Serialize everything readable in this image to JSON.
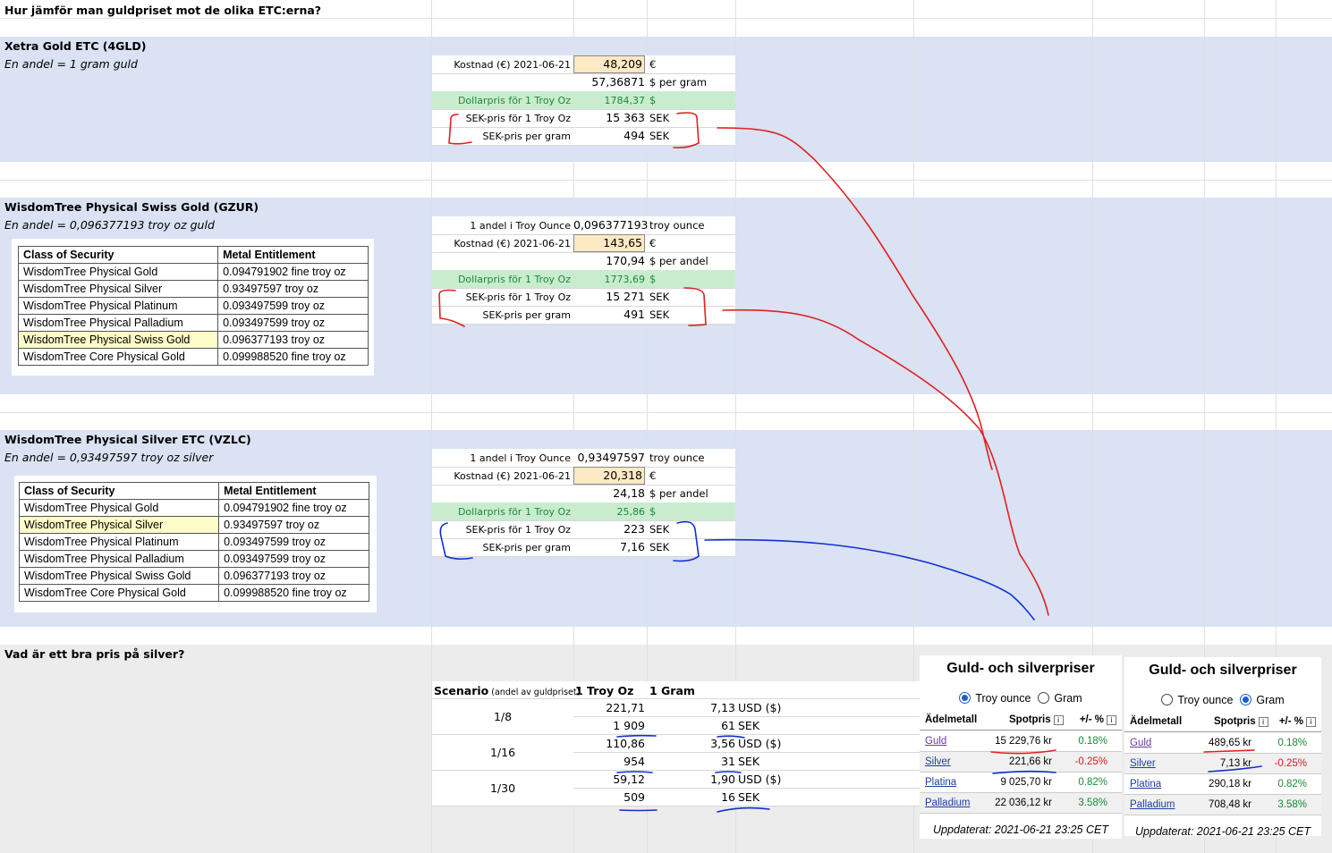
{
  "heading": "Hur jämför man guldpriset mot de olika ETC:erna?",
  "section1": {
    "title": "Xetra Gold ETC (4GLD)",
    "subtitle": "En andel = 1 gram guld",
    "rows": [
      {
        "label": "Kostnad (€) 2021-06-21",
        "value": "48,209",
        "unit": "€",
        "highlight": true
      },
      {
        "label": "",
        "value": "57,36871",
        "unit": "$ per gram"
      },
      {
        "label": "Dollarpris för 1 Troy Oz",
        "value": "1784,37",
        "unit": "$",
        "green": true
      },
      {
        "label": "SEK-pris för 1 Troy Oz",
        "value": "15 363",
        "unit": "SEK"
      },
      {
        "label": "SEK-pris per gram",
        "value": "494",
        "unit": "SEK"
      }
    ]
  },
  "section2": {
    "title": "WisdomTree Physical Swiss Gold (GZUR)",
    "subtitle": "En andel = 0,096377193 troy oz guld",
    "rows": [
      {
        "label": "1 andel i Troy Ounce",
        "value": "0,096377193",
        "unit": "troy ounce"
      },
      {
        "label": "Kostnad (€) 2021-06-21",
        "value": "143,65",
        "unit": "€",
        "highlight": true
      },
      {
        "label": "",
        "value": "170,94",
        "unit": "$ per andel"
      },
      {
        "label": "Dollarpris för 1 Troy Oz",
        "value": "1773,69",
        "unit": "$",
        "green": true
      },
      {
        "label": "SEK-pris för 1 Troy Oz",
        "value": "15 271",
        "unit": "SEK"
      },
      {
        "label": "SEK-pris per gram",
        "value": "491",
        "unit": "SEK"
      }
    ]
  },
  "section3": {
    "title": "WisdomTree Physical Silver ETC (VZLC)",
    "subtitle": "En andel = 0,93497597 troy oz silver",
    "rows": [
      {
        "label": "1 andel i Troy Ounce",
        "value": "0,93497597",
        "unit": "troy ounce"
      },
      {
        "label": "Kostnad (€) 2021-06-21",
        "value": "20,318",
        "unit": "€",
        "highlight": true
      },
      {
        "label": "",
        "value": "24,18",
        "unit": "$ per andel"
      },
      {
        "label": "Dollarpris för 1 Troy Oz",
        "value": "25,86",
        "unit": "$",
        "green": true
      },
      {
        "label": "SEK-pris för 1 Troy Oz",
        "value": "223",
        "unit": "SEK"
      },
      {
        "label": "SEK-pris per gram",
        "value": "7,16",
        "unit": "SEK"
      }
    ]
  },
  "entitlement": {
    "headers": [
      "Class of Security",
      "Metal Entitlement"
    ],
    "rows": [
      [
        "WisdomTree Physical Gold",
        "0.094791902 fine troy oz"
      ],
      [
        "WisdomTree Physical Silver",
        "0.93497597 troy oz"
      ],
      [
        "WisdomTree Physical Platinum",
        "0.093497599 troy oz"
      ],
      [
        "WisdomTree Physical Palladium",
        "0.093497599 troy oz"
      ],
      [
        "WisdomTree Physical Swiss Gold",
        "0.096377193 troy oz"
      ],
      [
        "WisdomTree Core Physical Gold",
        "0.099988520 fine troy oz"
      ]
    ]
  },
  "silver_question": {
    "title": "Vad är ett bra pris på silver?",
    "header_scenario": "Scenario",
    "header_scenario_note": "(andel av guldpriset)",
    "header_troy": "1 Troy Oz",
    "header_gram": "1 Gram",
    "scenarios": [
      {
        "name": "1/8",
        "usd_oz": "221,71",
        "usd_g": "7,13",
        "usd_unit": "USD ($)",
        "sek_oz": "1 909",
        "sek_g": "61",
        "sek_unit": "SEK"
      },
      {
        "name": "1/16",
        "usd_oz": "110,86",
        "usd_g": "3,56",
        "usd_unit": "USD ($)",
        "sek_oz": "954",
        "sek_g": "31",
        "sek_unit": "SEK"
      },
      {
        "name": "1/30",
        "usd_oz": "59,12",
        "usd_g": "1,90",
        "usd_unit": "USD ($)",
        "sek_oz": "509",
        "sek_g": "16",
        "sek_unit": "SEK"
      }
    ]
  },
  "widget_troy": {
    "title": "Guld- och silverpriser",
    "radio_troy": "Troy ounce",
    "radio_gram": "Gram",
    "selected": "troy",
    "col_metal": "Ädelmetall",
    "col_price": "Spotpris",
    "col_change": "+/- %",
    "rows": [
      {
        "metal": "Guld",
        "price": "15 229,76 kr",
        "change": "0.18%",
        "dir": "pos"
      },
      {
        "metal": "Silver",
        "price": "221,66 kr",
        "change": "-0.25%",
        "dir": "neg"
      },
      {
        "metal": "Platina",
        "price": "9 025,70 kr",
        "change": "0.82%",
        "dir": "pos"
      },
      {
        "metal": "Palladium",
        "price": "22 036,12 kr",
        "change": "3.58%",
        "dir": "pos"
      }
    ],
    "updated": "Uppdaterat: 2021-06-21 23:25 CET"
  },
  "widget_gram": {
    "title": "Guld- och silverpriser",
    "radio_troy": "Troy ounce",
    "radio_gram": "Gram",
    "selected": "gram",
    "col_metal": "Ädelmetall",
    "col_price": "Spotpris",
    "col_change": "+/- %",
    "rows": [
      {
        "metal": "Guld",
        "price": "489,65 kr",
        "change": "0.18%",
        "dir": "pos"
      },
      {
        "metal": "Silver",
        "price": "7,13 kr",
        "change": "-0.25%",
        "dir": "neg"
      },
      {
        "metal": "Platina",
        "price": "290,18 kr",
        "change": "0.82%",
        "dir": "pos"
      },
      {
        "metal": "Palladium",
        "price": "708,48 kr",
        "change": "3.58%",
        "dir": "pos"
      }
    ],
    "updated": "Uppdaterat: 2021-06-21 23:25 CET"
  },
  "colors": {
    "band_blue": "#dae2f3",
    "band_grey": "#ececec",
    "highlight": "#fde9c4",
    "green_row": "#c9eccf",
    "ink_red": "#e02020",
    "ink_blue": "#1030d0"
  }
}
